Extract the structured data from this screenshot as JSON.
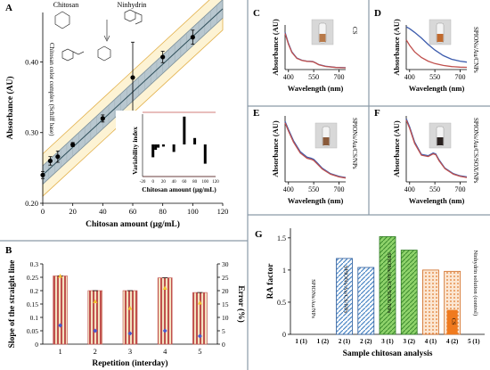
{
  "chart_data": [
    {
      "panel": "A",
      "type": "scatter",
      "xlabel": "Chitosan amount (µg/mL)",
      "ylabel": "Absorbance (AU)",
      "xlim": [
        0,
        120
      ],
      "ylim": [
        0.2,
        0.47
      ],
      "xticks": [
        "0",
        "20",
        "40",
        "60",
        "80",
        "100",
        "120"
      ],
      "yticks": [
        "0.20",
        "0.30",
        "0.40"
      ],
      "points": [
        {
          "x": 0,
          "y": 0.24,
          "err": 0.005
        },
        {
          "x": 5,
          "y": 0.26,
          "err": 0.006
        },
        {
          "x": 10,
          "y": 0.266,
          "err": 0.008
        },
        {
          "x": 20,
          "y": 0.283,
          "err": 0.003
        },
        {
          "x": 40,
          "y": 0.32,
          "err": 0.005
        },
        {
          "x": 60,
          "y": 0.378,
          "err": 0.05
        },
        {
          "x": 80,
          "y": 0.407,
          "err": 0.008
        },
        {
          "x": 100,
          "y": 0.435,
          "err": 0.01
        }
      ],
      "labels": [
        "Chitosan",
        "Ninhydrin",
        "Chitosan color complex (Schiff base)"
      ],
      "inset": {
        "type": "bar",
        "xlabel": "Chitosan amount (µg/mL)",
        "ylabel": "Variability index",
        "xticks": [
          "-20",
          "0",
          "20",
          "40",
          "60",
          "80",
          "100",
          "120"
        ],
        "x": [
          0,
          5,
          10,
          20,
          40,
          60,
          80,
          100
        ],
        "values": [
          -0.6,
          -0.25,
          -0.15,
          -0.1,
          -0.35,
          1.3,
          0.3,
          -0.9
        ]
      }
    },
    {
      "panel": "B",
      "type": "bar",
      "xlabel": "Repetition (interday)",
      "ylabel": "Slope of the straight line",
      "y2label": "Error (%)",
      "categories": [
        "1",
        "2",
        "3",
        "4",
        "5"
      ],
      "values": [
        0.255,
        0.2,
        0.2,
        0.248,
        0.193
      ],
      "errors_pct": [
        7,
        5,
        4,
        5,
        3
      ],
      "triangles": [
        0.255,
        0.16,
        0.135,
        0.21,
        0.155
      ],
      "ylim": [
        0,
        0.3
      ],
      "yticks": [
        "0",
        "0.05",
        "0.1",
        "0.15",
        "0.2",
        "0.25",
        "0.3"
      ],
      "y2ticks": [
        "0",
        "5",
        "10",
        "15",
        "20",
        "25",
        "30"
      ]
    },
    {
      "panel": "C",
      "type": "line",
      "xlabel": "Wavelength (nm)",
      "ylabel": "Absorbance (AU)",
      "side_label": "CS",
      "xticks": [
        "400",
        "550",
        "700"
      ],
      "series": [
        {
          "color": "#3d5cad",
          "x": [
            380,
            400,
            420,
            450,
            480,
            510,
            530,
            545,
            560,
            580,
            620,
            680,
            740
          ],
          "y": [
            2.0,
            1.4,
            0.95,
            0.62,
            0.5,
            0.45,
            0.44,
            0.43,
            0.37,
            0.27,
            0.18,
            0.12,
            0.1
          ]
        },
        {
          "color": "#c0504d",
          "x": [
            380,
            400,
            420,
            450,
            480,
            510,
            530,
            545,
            560,
            580,
            620,
            680,
            740
          ],
          "y": [
            1.95,
            1.36,
            0.92,
            0.6,
            0.49,
            0.44,
            0.43,
            0.42,
            0.36,
            0.26,
            0.17,
            0.11,
            0.09
          ]
        }
      ]
    },
    {
      "panel": "D",
      "type": "line",
      "xlabel": "Wavelength (nm)",
      "ylabel": "Absorbance (AU)",
      "side_label": "SPIONs/Au/CNPs",
      "xticks": [
        "400",
        "550",
        "700"
      ],
      "series": [
        {
          "color": "#3d5cad",
          "x": [
            380,
            400,
            430,
            470,
            510,
            550,
            600,
            650,
            700,
            740
          ],
          "y": [
            2.3,
            2.2,
            2.0,
            1.7,
            1.35,
            1.05,
            0.75,
            0.55,
            0.45,
            0.4
          ]
        },
        {
          "color": "#c0504d",
          "x": [
            380,
            400,
            430,
            470,
            510,
            550,
            600,
            650,
            700,
            740
          ],
          "y": [
            1.6,
            1.3,
            0.95,
            0.65,
            0.45,
            0.32,
            0.22,
            0.16,
            0.13,
            0.12
          ]
        }
      ]
    },
    {
      "panel": "E",
      "type": "line",
      "xlabel": "Wavelength (nm)",
      "ylabel": "Absorbance (AU)",
      "side_label": "SPIONs/Au/CS/NPs",
      "xticks": [
        "400",
        "550",
        "700"
      ],
      "series": [
        {
          "color": "#3d5cad",
          "x": [
            380,
            400,
            430,
            470,
            510,
            535,
            550,
            570,
            600,
            650,
            700,
            740
          ],
          "y": [
            2.2,
            1.9,
            1.5,
            1.1,
            0.9,
            0.86,
            0.82,
            0.7,
            0.5,
            0.3,
            0.2,
            0.16
          ]
        },
        {
          "color": "#c0504d",
          "x": [
            380,
            400,
            430,
            470,
            510,
            535,
            550,
            570,
            600,
            650,
            700,
            740
          ],
          "y": [
            2.15,
            1.85,
            1.45,
            1.05,
            0.86,
            0.82,
            0.78,
            0.66,
            0.47,
            0.28,
            0.18,
            0.14
          ]
        }
      ]
    },
    {
      "panel": "F",
      "type": "line",
      "xlabel": "Wavelength (nm)",
      "ylabel": "Absorbance (AU)",
      "side_label": "SPIONs/Au/CS/SOX/NPs",
      "xticks": [
        "400",
        "550",
        "700"
      ],
      "series": [
        {
          "color": "#3d5cad",
          "x": [
            380,
            400,
            430,
            470,
            510,
            540,
            555,
            575,
            610,
            660,
            700,
            740
          ],
          "y": [
            2.3,
            2.0,
            1.45,
            1.0,
            0.95,
            1.05,
            1.02,
            0.8,
            0.5,
            0.3,
            0.22,
            0.18
          ]
        },
        {
          "color": "#c0504d",
          "x": [
            380,
            400,
            430,
            470,
            510,
            540,
            555,
            575,
            610,
            660,
            700,
            740
          ],
          "y": [
            2.25,
            1.95,
            1.4,
            0.97,
            0.92,
            1.02,
            0.99,
            0.77,
            0.48,
            0.28,
            0.2,
            0.16
          ]
        }
      ]
    },
    {
      "panel": "G",
      "type": "bar",
      "xlabel": "Sample chitosan analysis",
      "ylabel": "RA factor",
      "ylim": [
        0,
        1.65
      ],
      "yticks": [
        "0",
        "0.5",
        "1",
        "1.5"
      ],
      "categories": [
        "1 (1)",
        "1 (2)",
        "2 (1)",
        "2 (2)",
        "3 (1)",
        "3 (2)",
        "4 (1)",
        "4 (2)",
        "5 (1)"
      ],
      "values": [
        0,
        0,
        1.18,
        1.04,
        1.52,
        1.31,
        1.0,
        0.98,
        0
      ],
      "group_labels": [
        "SPIONs/Au/NPs",
        "SPIONs/Au/CS/NPs",
        "SPIONs/Au/CS/SOX/NPs",
        "CS",
        "Ninhydrin solution (control)"
      ],
      "cs_bar_value": 0.38
    }
  ]
}
